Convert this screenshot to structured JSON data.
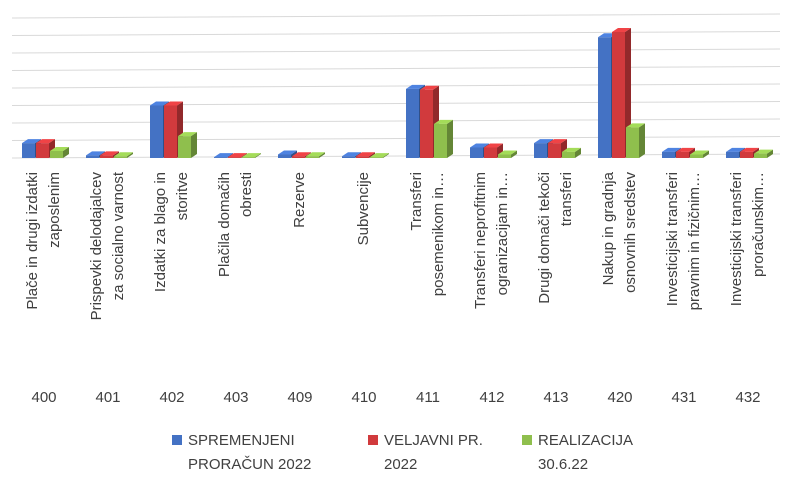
{
  "chart_data": {
    "type": "bar3d",
    "categories": [
      "400",
      "401",
      "402",
      "403",
      "409",
      "410",
      "411",
      "412",
      "413",
      "420",
      "431",
      "432"
    ],
    "category_descriptions": [
      [
        "Plače in drugi izdatki",
        "zaposlenim"
      ],
      [
        "Prispevki delodajalcev",
        "za socialno varnost"
      ],
      [
        "Izdatki za blago in",
        "storitve"
      ],
      [
        "Plačila domačih",
        "obresti"
      ],
      [
        "Rezerve"
      ],
      [
        "Subvencije"
      ],
      [
        "Transferi",
        "posemenikom in…"
      ],
      [
        "Transferi neprofitnim",
        "ogranizacijam in…"
      ],
      [
        "Drugi domači tekoči",
        "transferi"
      ],
      [
        "Nakup in gradnja",
        "osnovnih sredstev"
      ],
      [
        "Investicijski transferi",
        "pravnim in fizičnim…"
      ],
      [
        "Investicijski transferi",
        "proračunskim…"
      ]
    ],
    "series": [
      {
        "name": [
          "SPREMENJENI",
          "PRORAČUN 2022"
        ],
        "color": "#4472c4",
        "values": [
          0.85,
          0.15,
          3.0,
          0.05,
          0.2,
          0.1,
          3.95,
          0.6,
          0.85,
          6.9,
          0.35,
          0.35
        ]
      },
      {
        "name": [
          "VELJAVNI PR.",
          "2022"
        ],
        "color": "#d13a3d",
        "values": [
          0.85,
          0.15,
          3.0,
          0.05,
          0.1,
          0.1,
          3.9,
          0.6,
          0.85,
          7.2,
          0.35,
          0.35
        ]
      },
      {
        "name": [
          "REALIZACIJA",
          "30.6.22"
        ],
        "color": "#8fbf4d",
        "values": [
          0.4,
          0.1,
          1.25,
          0.05,
          0.1,
          0.05,
          1.95,
          0.2,
          0.35,
          1.75,
          0.2,
          0.25
        ]
      }
    ],
    "ylim": [
      0,
      8
    ],
    "yticks": [
      0,
      1,
      2,
      3,
      4,
      5,
      6,
      7,
      8
    ],
    "grid": true,
    "legend": "bottom"
  }
}
